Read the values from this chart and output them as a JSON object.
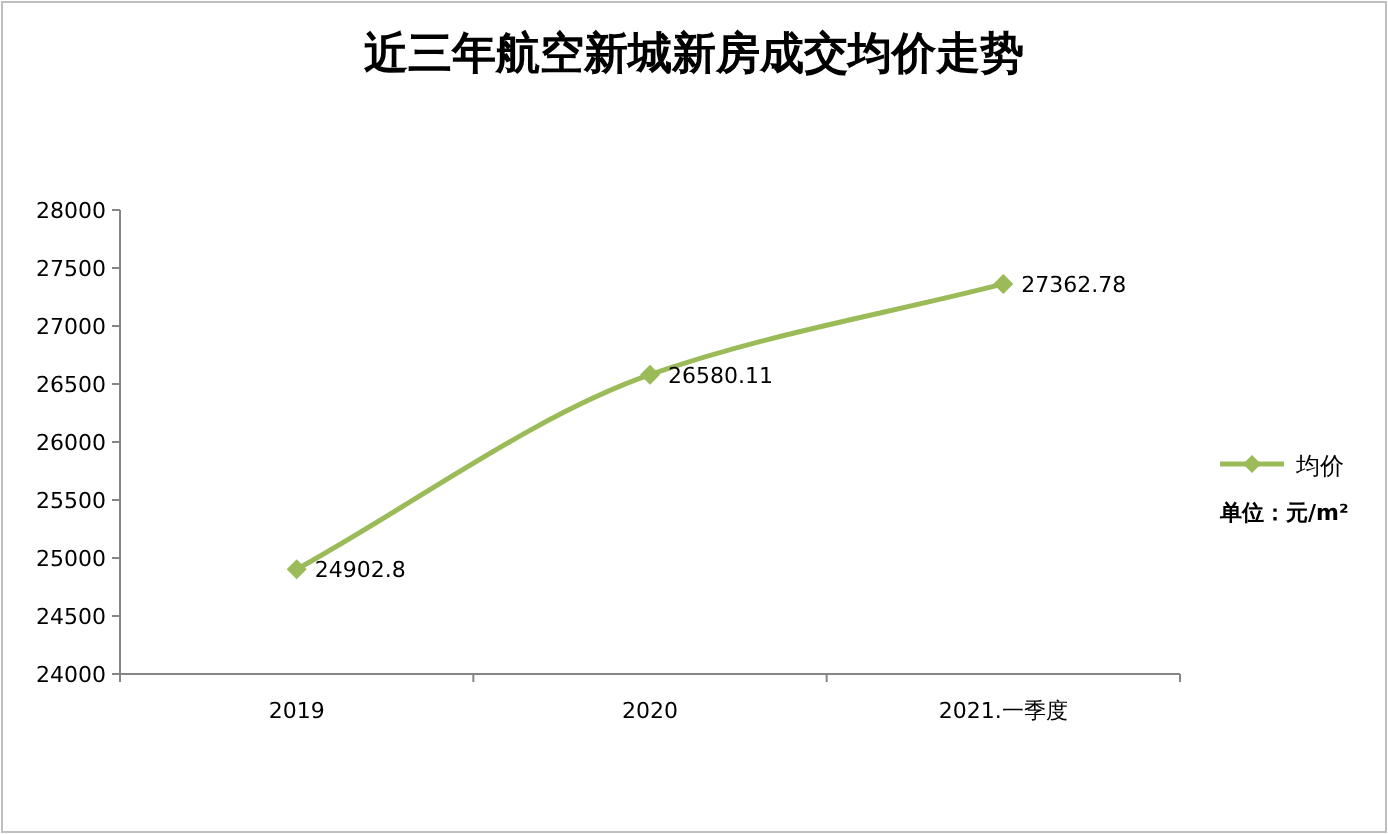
{
  "chart_data": {
    "type": "line",
    "title": "近三年航空新城新房成交均价走势",
    "categories": [
      "2019",
      "2020",
      "2021.一季度"
    ],
    "series": [
      {
        "name": "均价",
        "color": "#9bbb59",
        "values": [
          24902.8,
          26580.11,
          27362.78
        ]
      }
    ],
    "ylim": [
      24000,
      28000
    ],
    "yticks": [
      24000,
      24500,
      25000,
      25500,
      26000,
      26500,
      27000,
      27500,
      28000
    ],
    "data_labels": true,
    "legend": "right",
    "marker": "diamond",
    "line_style": "solid",
    "grid": false,
    "annotations": [
      "单位：元/m²"
    ]
  }
}
